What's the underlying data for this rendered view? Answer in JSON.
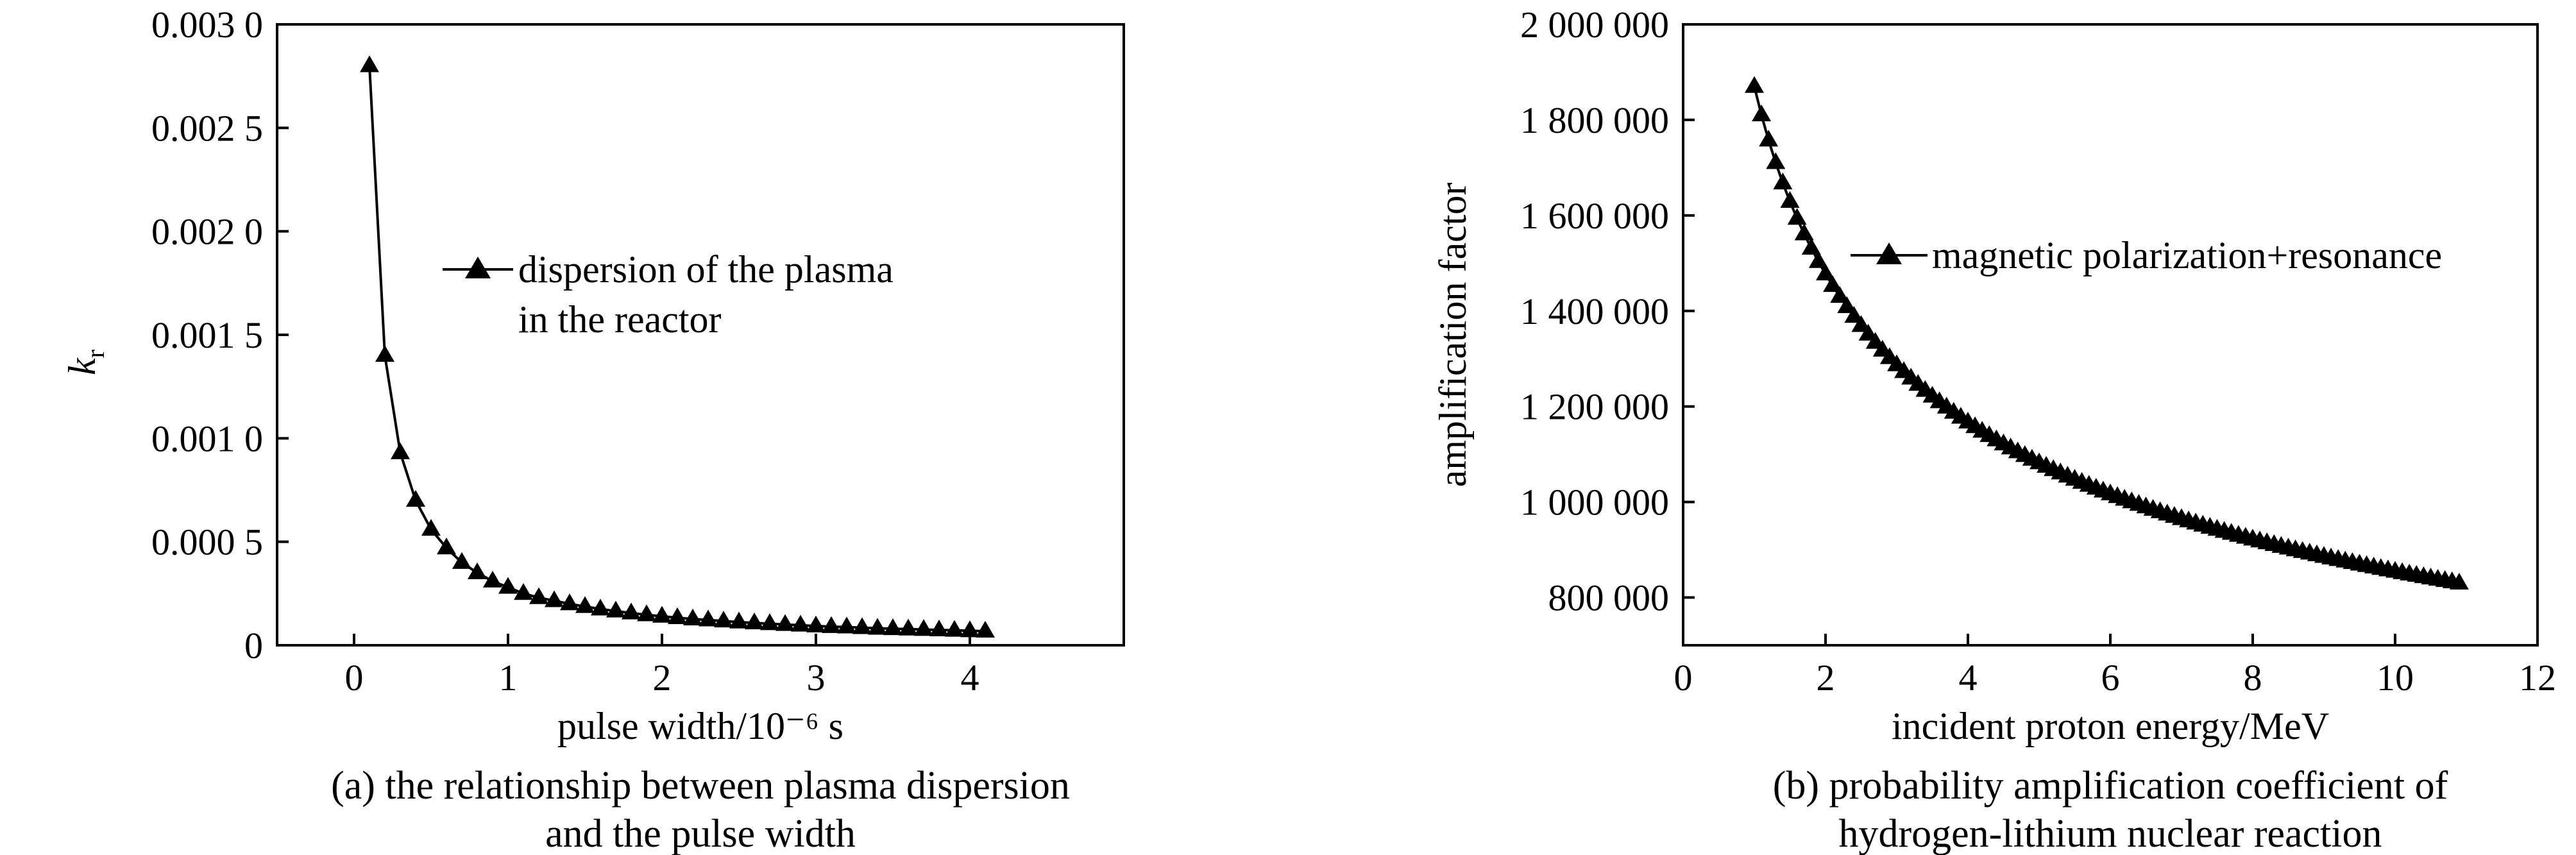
{
  "chart_data": [
    {
      "type": "line",
      "panel": "a",
      "title": "",
      "caption": [
        "(a) the relationship between plasma dispersion",
        "and the pulse width"
      ],
      "xlabel": "pulse width/10⁻⁶ s",
      "ylabel_main": "k",
      "ylabel_sub": "r",
      "xlim": [
        -0.5,
        5.0
      ],
      "ylim": [
        0,
        0.003
      ],
      "x_ticks": [
        0,
        1,
        2,
        3,
        4
      ],
      "x_tick_labels": [
        "0",
        "1",
        "2",
        "3",
        "4"
      ],
      "y_ticks": [
        0,
        0.0005,
        0.001,
        0.0015,
        0.002,
        0.0025,
        0.003
      ],
      "y_tick_labels": [
        "0",
        "0.000 5",
        "0.001 0",
        "0.001 5",
        "0.002 0",
        "0.002 5",
        "0.003 0"
      ],
      "grid": false,
      "legend_position": "center",
      "marker": "triangle",
      "series": [
        {
          "name": "dispersion of the plasma in the reactor",
          "legend_lines": [
            "dispersion of the plasma",
            "in the reactor"
          ],
          "x": [
            0.1,
            0.2,
            0.3,
            0.4,
            0.5,
            0.6,
            0.7,
            0.8,
            0.9,
            1.0,
            1.1,
            1.2,
            1.3,
            1.4,
            1.5,
            1.6,
            1.7,
            1.8,
            1.9,
            2.0,
            2.1,
            2.2,
            2.3,
            2.4,
            2.5,
            2.6,
            2.7,
            2.8,
            2.9,
            3.0,
            3.1,
            3.2,
            3.3,
            3.4,
            3.5,
            3.6,
            3.7,
            3.8,
            3.9,
            4.0,
            4.1
          ],
          "y": [
            0.0028,
            0.0014,
            0.00093,
            0.0007,
            0.00056,
            0.00047,
            0.0004,
            0.00035,
            0.00031,
            0.00028,
            0.00025,
            0.00023,
            0.000215,
            0.0002,
            0.000187,
            0.000175,
            0.000165,
            0.000156,
            0.000147,
            0.00014,
            0.000133,
            0.000127,
            0.000122,
            0.000117,
            0.000112,
            0.000108,
            0.000104,
            0.0001,
            9.7e-05,
            9.3e-05,
            9e-05,
            8.8e-05,
            8.5e-05,
            8.2e-05,
            8e-05,
            7.8e-05,
            7.6e-05,
            7.4e-05,
            7.2e-05,
            7e-05,
            6.8e-05
          ]
        }
      ]
    },
    {
      "type": "line",
      "panel": "b",
      "title": "",
      "caption": [
        "(b) probability amplification coefficient of",
        "hydrogen-lithium nuclear reaction"
      ],
      "xlabel": "incident proton energy/MeV",
      "ylabel": "amplification factor",
      "xlim": [
        0,
        12
      ],
      "ylim": [
        700000,
        2000000
      ],
      "x_ticks": [
        0,
        2,
        4,
        6,
        8,
        10,
        12
      ],
      "x_tick_labels": [
        "0",
        "2",
        "4",
        "6",
        "8",
        "10",
        "12"
      ],
      "y_ticks": [
        800000,
        1000000,
        1200000,
        1400000,
        1600000,
        1800000,
        2000000
      ],
      "y_tick_labels": [
        "800 000",
        "1 000 000",
        "1 200 000",
        "1 400 000",
        "1 600 000",
        "1 800 000",
        "2 000 000"
      ],
      "grid": false,
      "legend_position": "top-right",
      "marker": "triangle",
      "series": [
        {
          "name": "magnetic polarization+resonance",
          "x_start": 1.0,
          "x_end": 10.9,
          "x_step": 0.1,
          "model": "y = 1870000 * x^-0.34",
          "y_at_start": 1870000,
          "y_at_end": 840000
        }
      ]
    }
  ]
}
